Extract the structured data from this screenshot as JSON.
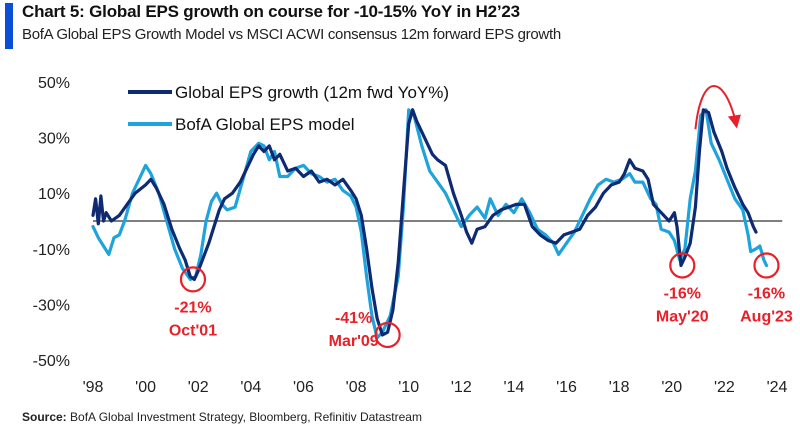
{
  "header": {
    "title": "Chart 5: Global EPS growth on course for -10-15% YoY in H2’23",
    "subtitle": "BofA Global EPS Growth Model vs MSCI ACWI consensus 12m forward EPS growth",
    "accent_color": "#0a4fd6"
  },
  "footer": {
    "source_label": "Source:",
    "source_text": "BofA Global Investment Strategy, Bloomberg, Refinitiv Datastream"
  },
  "chart_data": {
    "type": "line",
    "title": "Chart 5: Global EPS growth on course for -10-15% YoY in H2’23",
    "subtitle": "BofA Global EPS Growth Model vs MSCI ACWI consensus 12m forward EPS growth",
    "xlabel": "",
    "ylabel": "",
    "xlim": [
      1998,
      2024
    ],
    "ylim": [
      -50,
      50
    ],
    "x_ticks": [
      1998,
      2000,
      2002,
      2004,
      2006,
      2008,
      2010,
      2012,
      2014,
      2016,
      2018,
      2020,
      2022,
      2024
    ],
    "x_tick_labels": [
      "'98",
      "'00",
      "'02",
      "'04",
      "'06",
      "'08",
      "'10",
      "'12",
      "'14",
      "'16",
      "'18",
      "'20",
      "'22",
      "'24"
    ],
    "y_ticks": [
      50,
      30,
      10,
      -10,
      -30,
      -50
    ],
    "y_tick_labels": [
      "50%",
      "30%",
      "10%",
      "-10%",
      "-30%",
      "-50%"
    ],
    "grid": false,
    "zero_line": true,
    "legend": {
      "position": "top-left"
    },
    "series": [
      {
        "name": "Global EPS growth (12m fwd YoY%)",
        "color": "#0d2a73",
        "points": [
          [
            1998.0,
            2
          ],
          [
            1998.1,
            8
          ],
          [
            1998.2,
            -1
          ],
          [
            1998.3,
            9
          ],
          [
            1998.4,
            0
          ],
          [
            1998.5,
            3
          ],
          [
            1998.7,
            0
          ],
          [
            1999.0,
            2
          ],
          [
            1999.3,
            6
          ],
          [
            1999.6,
            10
          ],
          [
            2000.0,
            13
          ],
          [
            2000.2,
            15
          ],
          [
            2000.4,
            12
          ],
          [
            2000.7,
            6
          ],
          [
            2001.0,
            -3
          ],
          [
            2001.3,
            -10
          ],
          [
            2001.5,
            -14
          ],
          [
            2001.7,
            -20
          ],
          [
            2001.85,
            -21
          ],
          [
            2002.0,
            -18
          ],
          [
            2002.2,
            -13
          ],
          [
            2002.4,
            -8
          ],
          [
            2002.6,
            -2
          ],
          [
            2002.8,
            4
          ],
          [
            2003.0,
            8
          ],
          [
            2003.3,
            10
          ],
          [
            2003.6,
            14
          ],
          [
            2003.9,
            20
          ],
          [
            2004.1,
            24
          ],
          [
            2004.3,
            27
          ],
          [
            2004.5,
            25
          ],
          [
            2004.7,
            27
          ],
          [
            2004.9,
            22
          ],
          [
            2005.1,
            24
          ],
          [
            2005.4,
            18
          ],
          [
            2005.7,
            19
          ],
          [
            2006.0,
            16
          ],
          [
            2006.3,
            18
          ],
          [
            2006.6,
            14
          ],
          [
            2006.9,
            15
          ],
          [
            2007.2,
            13
          ],
          [
            2007.5,
            15
          ],
          [
            2007.8,
            11
          ],
          [
            2008.0,
            8
          ],
          [
            2008.2,
            2
          ],
          [
            2008.4,
            -10
          ],
          [
            2008.6,
            -24
          ],
          [
            2008.8,
            -35
          ],
          [
            2009.0,
            -41
          ],
          [
            2009.2,
            -40
          ],
          [
            2009.4,
            -32
          ],
          [
            2009.6,
            -15
          ],
          [
            2009.8,
            10
          ],
          [
            2010.0,
            35
          ],
          [
            2010.15,
            40
          ],
          [
            2010.3,
            36
          ],
          [
            2010.6,
            30
          ],
          [
            2010.9,
            24
          ],
          [
            2011.1,
            22
          ],
          [
            2011.4,
            20
          ],
          [
            2011.7,
            10
          ],
          [
            2012.0,
            2
          ],
          [
            2012.2,
            -4
          ],
          [
            2012.4,
            -8
          ],
          [
            2012.6,
            -3
          ],
          [
            2012.9,
            -2
          ],
          [
            2013.2,
            2
          ],
          [
            2013.5,
            4
          ],
          [
            2013.8,
            5
          ],
          [
            2014.1,
            6
          ],
          [
            2014.4,
            6
          ],
          [
            2014.7,
            -2
          ],
          [
            2015.0,
            -5
          ],
          [
            2015.3,
            -7
          ],
          [
            2015.6,
            -8
          ],
          [
            2015.9,
            -5
          ],
          [
            2016.2,
            -4
          ],
          [
            2016.5,
            -3
          ],
          [
            2016.8,
            2
          ],
          [
            2017.1,
            5
          ],
          [
            2017.4,
            10
          ],
          [
            2017.7,
            13
          ],
          [
            2018.0,
            14
          ],
          [
            2018.2,
            17
          ],
          [
            2018.4,
            22
          ],
          [
            2018.6,
            19
          ],
          [
            2018.9,
            18
          ],
          [
            2019.1,
            15
          ],
          [
            2019.3,
            6
          ],
          [
            2019.6,
            3
          ],
          [
            2019.9,
            0
          ],
          [
            2020.1,
            3
          ],
          [
            2020.2,
            -2
          ],
          [
            2020.35,
            -16
          ],
          [
            2020.5,
            -13
          ],
          [
            2020.7,
            -8
          ],
          [
            2020.9,
            5
          ],
          [
            2021.05,
            25
          ],
          [
            2021.2,
            40
          ],
          [
            2021.4,
            39
          ],
          [
            2021.6,
            32
          ],
          [
            2021.9,
            25
          ],
          [
            2022.1,
            19
          ],
          [
            2022.4,
            12
          ],
          [
            2022.7,
            6
          ],
          [
            2022.9,
            3
          ],
          [
            2023.1,
            -2
          ],
          [
            2023.2,
            -4
          ]
        ]
      },
      {
        "name": "BofA Global EPS model",
        "color": "#1fa3dc",
        "points": [
          [
            1998.0,
            -2
          ],
          [
            1998.2,
            -6
          ],
          [
            1998.4,
            -9
          ],
          [
            1998.6,
            -12
          ],
          [
            1998.8,
            -6
          ],
          [
            1999.0,
            -5
          ],
          [
            1999.2,
            0
          ],
          [
            1999.5,
            10
          ],
          [
            1999.8,
            16
          ],
          [
            2000.0,
            20
          ],
          [
            2000.2,
            17
          ],
          [
            2000.5,
            10
          ],
          [
            2000.8,
            0
          ],
          [
            2001.1,
            -10
          ],
          [
            2001.4,
            -17
          ],
          [
            2001.7,
            -21
          ],
          [
            2001.9,
            -20
          ],
          [
            2002.1,
            -12
          ],
          [
            2002.3,
            0
          ],
          [
            2002.5,
            7
          ],
          [
            2002.7,
            10
          ],
          [
            2002.9,
            6
          ],
          [
            2003.1,
            4
          ],
          [
            2003.4,
            5
          ],
          [
            2003.7,
            15
          ],
          [
            2004.0,
            25
          ],
          [
            2004.3,
            28
          ],
          [
            2004.5,
            27
          ],
          [
            2004.7,
            22
          ],
          [
            2004.9,
            25
          ],
          [
            2005.1,
            16
          ],
          [
            2005.4,
            16
          ],
          [
            2005.7,
            19
          ],
          [
            2006.0,
            20
          ],
          [
            2006.3,
            17
          ],
          [
            2006.6,
            16
          ],
          [
            2006.9,
            14
          ],
          [
            2007.2,
            15
          ],
          [
            2007.5,
            11
          ],
          [
            2007.8,
            9
          ],
          [
            2008.0,
            5
          ],
          [
            2008.2,
            -4
          ],
          [
            2008.4,
            -20
          ],
          [
            2008.6,
            -34
          ],
          [
            2008.8,
            -42
          ],
          [
            2009.0,
            -40
          ],
          [
            2009.3,
            -34
          ],
          [
            2009.6,
            -20
          ],
          [
            2009.8,
            5
          ],
          [
            2010.0,
            40
          ],
          [
            2010.2,
            38
          ],
          [
            2010.5,
            27
          ],
          [
            2010.8,
            18
          ],
          [
            2011.1,
            14
          ],
          [
            2011.4,
            10
          ],
          [
            2011.7,
            4
          ],
          [
            2012.0,
            -2
          ],
          [
            2012.3,
            2
          ],
          [
            2012.6,
            5
          ],
          [
            2012.9,
            1
          ],
          [
            2013.1,
            8
          ],
          [
            2013.4,
            2
          ],
          [
            2013.7,
            6
          ],
          [
            2014.0,
            3
          ],
          [
            2014.3,
            8
          ],
          [
            2014.6,
            3
          ],
          [
            2014.9,
            -3
          ],
          [
            2015.2,
            -5
          ],
          [
            2015.5,
            -8
          ],
          [
            2015.7,
            -12
          ],
          [
            2016.0,
            -8
          ],
          [
            2016.3,
            -4
          ],
          [
            2016.6,
            2
          ],
          [
            2016.9,
            8
          ],
          [
            2017.2,
            13
          ],
          [
            2017.5,
            15
          ],
          [
            2017.8,
            14
          ],
          [
            2018.1,
            15
          ],
          [
            2018.4,
            17
          ],
          [
            2018.6,
            14
          ],
          [
            2018.9,
            14
          ],
          [
            2019.2,
            8
          ],
          [
            2019.4,
            6
          ],
          [
            2019.6,
            -3
          ],
          [
            2019.9,
            -4
          ],
          [
            2020.1,
            -7
          ],
          [
            2020.3,
            -14
          ],
          [
            2020.5,
            -10
          ],
          [
            2020.7,
            8
          ],
          [
            2020.9,
            18
          ],
          [
            2021.1,
            38
          ],
          [
            2021.3,
            40
          ],
          [
            2021.5,
            28
          ],
          [
            2021.8,
            22
          ],
          [
            2022.1,
            15
          ],
          [
            2022.4,
            8
          ],
          [
            2022.7,
            4
          ],
          [
            2022.9,
            -5
          ],
          [
            2023.0,
            -11
          ],
          [
            2023.2,
            -10
          ],
          [
            2023.35,
            -9
          ],
          [
            2023.5,
            -14
          ],
          [
            2023.6,
            -16
          ]
        ]
      }
    ],
    "annotations": [
      {
        "value_label": "-21%",
        "date_label": "Oct'01",
        "x": 2001.8,
        "y": -21
      },
      {
        "value_label": "-41%",
        "date_label": "Mar'09",
        "x": 2009.2,
        "y": -41
      },
      {
        "value_label": "-16%",
        "date_label": "May'20",
        "x": 2020.4,
        "y": -16
      },
      {
        "value_label": "-16%",
        "date_label": "Aug'23",
        "x": 2023.6,
        "y": -16
      }
    ],
    "annotation_color": "#e8202a",
    "arrow": {
      "description": "curved red arrow over 2021 peak indicating downturn"
    }
  }
}
